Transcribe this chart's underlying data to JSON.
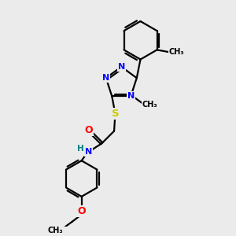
{
  "background_color": "#ebebeb",
  "bond_color": "#000000",
  "N_color": "#0000ff",
  "S_color": "#cccc00",
  "O_color": "#ff0000",
  "H_color": "#008080",
  "C_color": "#000000",
  "font_size": 8.0,
  "linewidth": 1.6,
  "figsize": [
    3.0,
    3.0
  ],
  "dpi": 100,
  "xlim": [
    0,
    10
  ],
  "ylim": [
    0,
    10
  ]
}
